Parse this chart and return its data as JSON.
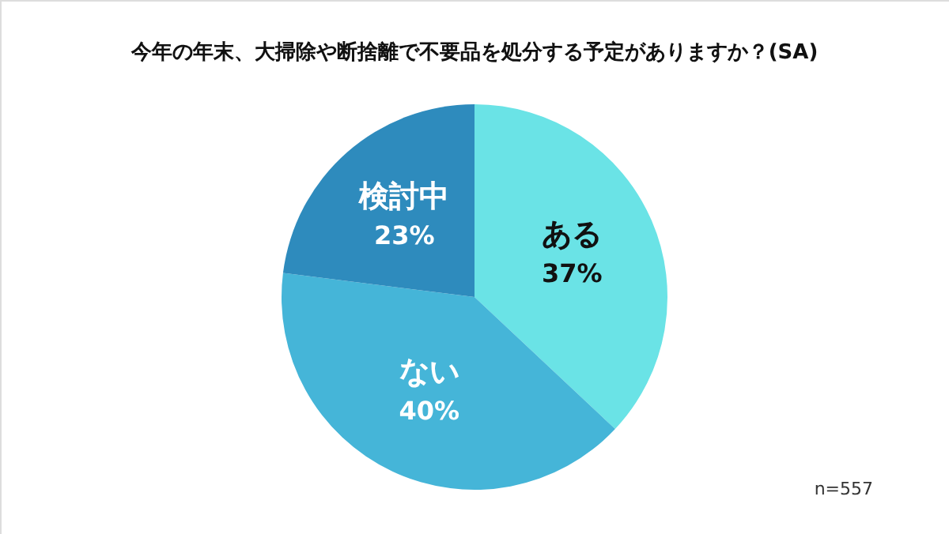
{
  "chart_data": {
    "type": "pie",
    "title": "今年の年末、大掃除や断捨離で不要品を処分する予定がありますか？(SA)",
    "categories": [
      "ある",
      "ない",
      "検討中"
    ],
    "values": [
      37,
      40,
      23
    ],
    "value_labels": [
      "37%",
      "40%",
      "23%"
    ],
    "colors": [
      "#6ae3e6",
      "#45b5d8",
      "#2e8bbd"
    ],
    "annotations": [
      "n=557"
    ]
  }
}
